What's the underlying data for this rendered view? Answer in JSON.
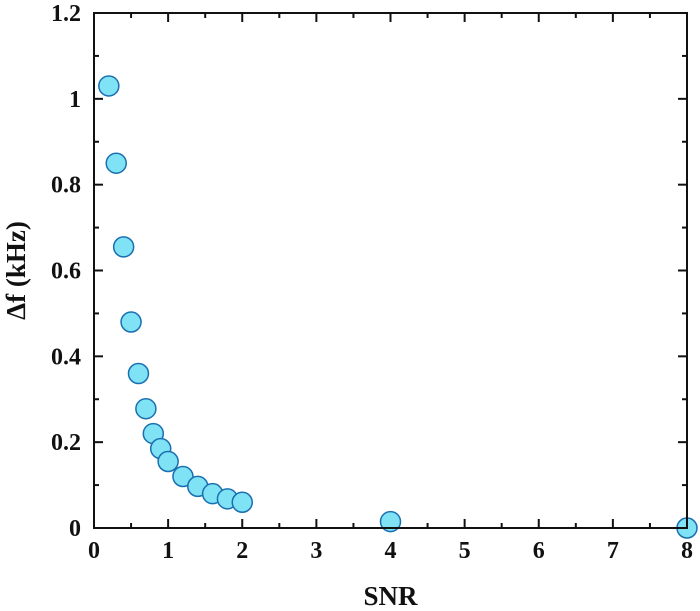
{
  "chart_data": {
    "type": "scatter",
    "title": "",
    "xlabel": "SNR",
    "ylabel": "Δf (kHz)",
    "xlim": [
      0,
      8
    ],
    "ylim": [
      0,
      1.2
    ],
    "xticks": [
      0,
      1,
      2,
      3,
      4,
      5,
      6,
      7,
      8
    ],
    "yticks": [
      0,
      0.2,
      0.4,
      0.6,
      0.8,
      1,
      1.2
    ],
    "xtick_labels": [
      "0",
      "1",
      "2",
      "3",
      "4",
      "5",
      "6",
      "7",
      "8"
    ],
    "ytick_labels": [
      "0",
      "0.2",
      "0.4",
      "0.6",
      "0.8",
      "1",
      "1.2"
    ],
    "grid": false,
    "legend": "none",
    "marker_color": "#7fe3f5",
    "marker_edge_color": "#1a6fb0",
    "series": [
      {
        "points": [
          {
            "x": 0.2,
            "y": 1.03
          },
          {
            "x": 0.3,
            "y": 0.85
          },
          {
            "x": 0.4,
            "y": 0.655
          },
          {
            "x": 0.5,
            "y": 0.48
          },
          {
            "x": 0.6,
            "y": 0.36
          },
          {
            "x": 0.7,
            "y": 0.278
          },
          {
            "x": 0.8,
            "y": 0.22
          },
          {
            "x": 0.9,
            "y": 0.185
          },
          {
            "x": 1.0,
            "y": 0.155
          },
          {
            "x": 1.2,
            "y": 0.12
          },
          {
            "x": 1.4,
            "y": 0.097
          },
          {
            "x": 1.6,
            "y": 0.08
          },
          {
            "x": 1.8,
            "y": 0.068
          },
          {
            "x": 2.0,
            "y": 0.06
          },
          {
            "x": 4.0,
            "y": 0.015
          },
          {
            "x": 8.0,
            "y": 0.0
          }
        ]
      }
    ]
  }
}
